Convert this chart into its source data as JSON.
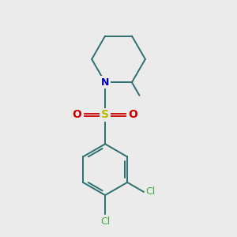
{
  "background_color": "#ebebeb",
  "bond_color": "#2d6e6e",
  "N_color": "#0000cc",
  "S_color": "#b8b800",
  "O_color": "#cc0000",
  "Cl_color": "#44aa44",
  "figsize": [
    3.0,
    3.0
  ],
  "dpi": 100,
  "N_label": "N",
  "S_label": "S",
  "O_labels": [
    "O",
    "O"
  ],
  "Cl_labels": [
    "Cl",
    "Cl"
  ],
  "lw": 1.4
}
